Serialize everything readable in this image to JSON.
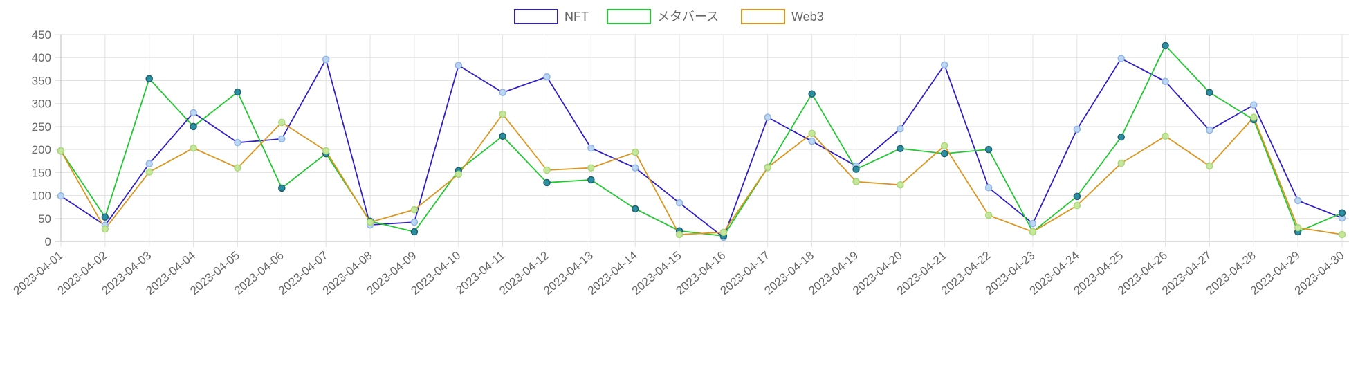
{
  "chart_data": {
    "type": "line",
    "title": "",
    "xlabel": "",
    "ylabel": "",
    "ylim": [
      0,
      450
    ],
    "yticks": [
      0,
      50,
      100,
      150,
      200,
      250,
      300,
      350,
      400,
      450
    ],
    "grid": true,
    "legend_position": "top",
    "categories": [
      "2023-04-01",
      "2023-04-02",
      "2023-04-03",
      "2023-04-04",
      "2023-04-05",
      "2023-04-06",
      "2023-04-07",
      "2023-04-08",
      "2023-04-09",
      "2023-04-10",
      "2023-04-11",
      "2023-04-12",
      "2023-04-13",
      "2023-04-14",
      "2023-04-15",
      "2023-04-16",
      "2023-04-17",
      "2023-04-18",
      "2023-04-19",
      "2023-04-20",
      "2023-04-21",
      "2023-04-22",
      "2023-04-23",
      "2023-04-24",
      "2023-04-25",
      "2023-04-26",
      "2023-04-27",
      "2023-04-28",
      "2023-04-29",
      "2023-04-30"
    ],
    "series": [
      {
        "name": "NFT",
        "color": "#2f1fc8",
        "point_fill": "#bcd6f2",
        "point_border": "#8fb4e6",
        "values": [
          99,
          35,
          169,
          280,
          215,
          223,
          396,
          36,
          42,
          383,
          324,
          358,
          203,
          160,
          84,
          9,
          270,
          218,
          164,
          245,
          384,
          117,
          39,
          244,
          398,
          348,
          242,
          297,
          89,
          51
        ]
      },
      {
        "name": "メタバース",
        "color": "#22c832",
        "point_fill": "#2a8fa0",
        "point_border": "#1d5f6e",
        "values": [
          197,
          53,
          354,
          250,
          325,
          116,
          191,
          44,
          21,
          154,
          229,
          128,
          134,
          71,
          23,
          12,
          161,
          321,
          157,
          202,
          191,
          200,
          21,
          98,
          227,
          426,
          324,
          265,
          21,
          62
        ]
      },
      {
        "name": "Web3",
        "color": "#dc9620",
        "point_fill": "#c6e69c",
        "point_border": "#a8d878",
        "values": [
          197,
          27,
          151,
          203,
          160,
          259,
          197,
          42,
          69,
          146,
          277,
          155,
          160,
          194,
          15,
          20,
          161,
          235,
          130,
          123,
          208,
          57,
          21,
          78,
          170,
          229,
          164,
          270,
          30,
          15
        ]
      }
    ]
  }
}
